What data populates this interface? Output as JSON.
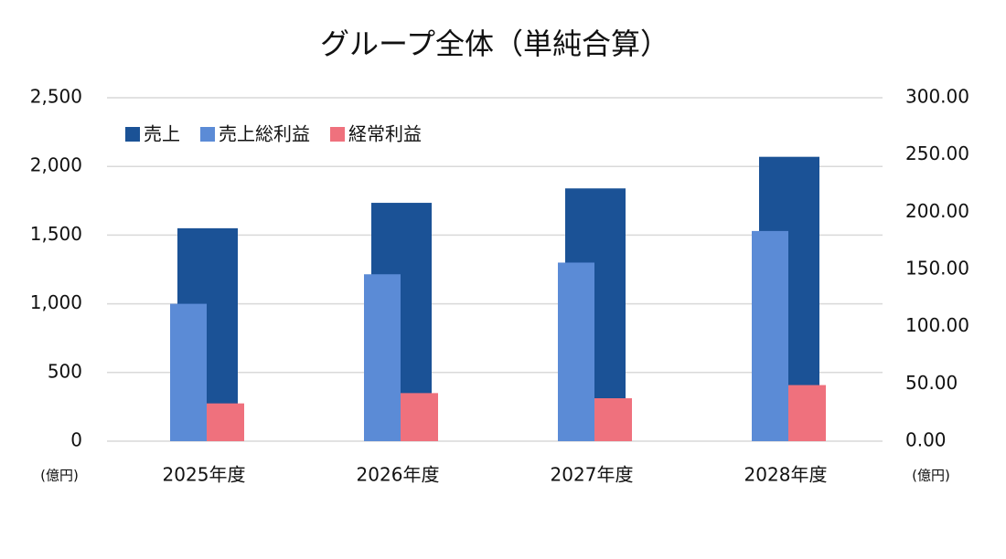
{
  "chart_data": {
    "type": "bar",
    "title": "グループ全体（単純合算）",
    "categories": [
      "2025年度",
      "2026年度",
      "2027年度",
      "2028年度"
    ],
    "series": [
      {
        "name": "売上",
        "color": "#1b5296",
        "values": [
          1550,
          1735,
          1840,
          2070
        ]
      },
      {
        "name": "売上総利益",
        "color": "#5b8bd6",
        "values": [
          1000,
          1215,
          1300,
          1530
        ]
      },
      {
        "name": "経常利益",
        "color": "#ef717d",
        "axis": "y2",
        "values": [
          33,
          42,
          37.5,
          49
        ]
      }
    ],
    "ylim": [
      0,
      2500
    ],
    "yticks": [
      0,
      500,
      {
        "value": 1000,
        "label": "1,000"
      },
      {
        "value": 1500,
        "label": "1,500"
      },
      {
        "value": 2000,
        "label": "2,000"
      },
      {
        "value": 2500,
        "label": "2,500"
      }
    ],
    "y2lim": [
      0,
      300
    ],
    "y2ticks": [
      {
        "value": 0,
        "label": "0.00"
      },
      {
        "value": 50,
        "label": "50.00"
      },
      {
        "value": 100,
        "label": "100.00"
      },
      {
        "value": 150,
        "label": "150.00"
      },
      {
        "value": 200,
        "label": "200.00"
      },
      {
        "value": 250,
        "label": "250.00"
      },
      {
        "value": 300,
        "label": "300.00"
      }
    ],
    "y_unit": "(億円)",
    "y2_unit": "(億円)",
    "grid": true,
    "legend": "top-left"
  }
}
